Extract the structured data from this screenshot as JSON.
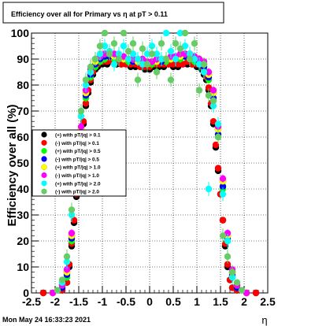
{
  "title": "Efficiency over all for Primary vs  η at pT > 0.11",
  "timestamp": "Mon May 24 16:33:23 2021",
  "chart_data": {
    "type": "scatter",
    "title": "Efficiency over all for Primary vs  η at pT > 0.11",
    "xlabel": "η",
    "ylabel": "Efficiency over all (%)",
    "xlim": [
      -2.5,
      2.5
    ],
    "ylim": [
      0,
      100
    ],
    "grid": true,
    "legend_position": "middle-left",
    "x_ticks": [
      "-2.5",
      "-2",
      "-1.5",
      "-1",
      "-0.5",
      "0",
      "0.5",
      "1",
      "1.5",
      "2",
      "2.5"
    ],
    "y_ticks": [
      "0",
      "10",
      "20",
      "30",
      "40",
      "50",
      "60",
      "70",
      "80",
      "90",
      "100"
    ],
    "series": [
      {
        "name": "(+) with pT/|q| > 0.1",
        "color": "#000000",
        "x": [
          -2.25,
          -2.05,
          -1.85,
          -1.75,
          -1.7,
          -1.65,
          -1.6,
          -1.55,
          -1.5,
          -1.45,
          -1.4,
          -1.35,
          -1.3,
          -1.25,
          -1.2,
          -1.15,
          -1.1,
          -1.0,
          -0.9,
          -0.8,
          -0.7,
          -0.6,
          -0.5,
          -0.4,
          -0.3,
          -0.2,
          -0.1,
          0.0,
          0.1,
          0.2,
          0.3,
          0.4,
          0.5,
          0.6,
          0.7,
          0.8,
          0.9,
          1.0,
          1.1,
          1.15,
          1.2,
          1.25,
          1.3,
          1.35,
          1.4,
          1.45,
          1.5,
          1.55,
          1.6,
          1.65,
          1.7,
          1.75,
          1.85,
          2.05,
          2.25
        ],
        "y": [
          0,
          0,
          1,
          4,
          10,
          18,
          27,
          37,
          47,
          57,
          65,
          72,
          77,
          81,
          84,
          86,
          87,
          88,
          88,
          89,
          88,
          88,
          88,
          87,
          87,
          87,
          86,
          86,
          87,
          87,
          87,
          88,
          87,
          87,
          88,
          88,
          88,
          87,
          86,
          84,
          82,
          78,
          72,
          65,
          56,
          47,
          38,
          28,
          18,
          10,
          5,
          2,
          1,
          0,
          0
        ]
      },
      {
        "name": "(-) with pT/|q| > 0.1",
        "color": "#ff0000",
        "x": [
          -2.25,
          -2.05,
          -1.85,
          -1.75,
          -1.7,
          -1.65,
          -1.6,
          -1.55,
          -1.5,
          -1.45,
          -1.4,
          -1.35,
          -1.3,
          -1.25,
          -1.2,
          -1.15,
          -1.1,
          -1.0,
          -0.9,
          -0.8,
          -0.7,
          -0.6,
          -0.5,
          -0.4,
          -0.3,
          -0.2,
          -0.1,
          0.0,
          0.1,
          0.2,
          0.3,
          0.4,
          0.5,
          0.6,
          0.7,
          0.8,
          0.9,
          1.0,
          1.1,
          1.15,
          1.2,
          1.25,
          1.3,
          1.35,
          1.4,
          1.45,
          1.5,
          1.55,
          1.6,
          1.65,
          1.7,
          1.75,
          1.85,
          2.05,
          2.25
        ],
        "y": [
          0,
          0,
          1,
          4,
          11,
          19,
          28,
          38,
          48,
          58,
          66,
          73,
          78,
          82,
          85,
          87,
          88,
          89,
          89,
          89,
          89,
          88,
          88,
          88,
          88,
          87,
          87,
          87,
          88,
          88,
          88,
          88,
          88,
          88,
          88,
          89,
          88,
          88,
          87,
          85,
          83,
          79,
          73,
          66,
          57,
          48,
          38,
          28,
          19,
          11,
          5,
          2,
          1,
          0,
          0
        ]
      },
      {
        "name": "(+) with pT/|q| > 0.5",
        "color": "#00ff00",
        "x": [
          -2.05,
          -1.85,
          -1.75,
          -1.65,
          -1.55,
          -1.45,
          -1.35,
          -1.25,
          -1.15,
          -1.05,
          -0.95,
          -0.85,
          -0.75,
          -0.65,
          -0.55,
          -0.45,
          -0.35,
          -0.25,
          -0.15,
          -0.05,
          0.05,
          0.15,
          0.25,
          0.35,
          0.45,
          0.55,
          0.65,
          0.75,
          0.85,
          0.95,
          1.05,
          1.15,
          1.25,
          1.35,
          1.45,
          1.55,
          1.65,
          1.75,
          1.85,
          2.05
        ],
        "y": [
          0,
          2,
          6,
          20,
          40,
          60,
          75,
          83,
          87,
          89,
          90,
          91,
          90,
          90,
          90,
          89,
          89,
          89,
          88,
          88,
          88,
          89,
          89,
          89,
          90,
          90,
          90,
          91,
          90,
          89,
          88,
          86,
          82,
          74,
          60,
          40,
          20,
          6,
          2,
          0
        ]
      },
      {
        "name": "(-) with pT/|q| > 0.5",
        "color": "#0000ff",
        "x": [
          -2.05,
          -1.85,
          -1.75,
          -1.65,
          -1.55,
          -1.45,
          -1.35,
          -1.25,
          -1.15,
          -1.05,
          -0.95,
          -0.85,
          -0.75,
          -0.65,
          -0.55,
          -0.45,
          -0.35,
          -0.25,
          -0.15,
          -0.05,
          0.05,
          0.15,
          0.25,
          0.35,
          0.45,
          0.55,
          0.65,
          0.75,
          0.85,
          0.95,
          1.05,
          1.15,
          1.25,
          1.35,
          1.45,
          1.55,
          1.65,
          1.75,
          1.85,
          2.05
        ],
        "y": [
          0,
          2,
          7,
          21,
          41,
          61,
          76,
          84,
          88,
          90,
          91,
          91,
          91,
          90,
          90,
          90,
          89,
          89,
          89,
          89,
          89,
          89,
          89,
          90,
          90,
          90,
          91,
          91,
          91,
          90,
          89,
          87,
          83,
          75,
          61,
          41,
          21,
          7,
          2,
          0
        ]
      },
      {
        "name": "(+) with pT/|q| > 1.0",
        "color": "#ffff00",
        "x": [
          -2.05,
          -1.85,
          -1.75,
          -1.65,
          -1.55,
          -1.45,
          -1.35,
          -1.25,
          -1.15,
          -1.05,
          -0.95,
          -0.85,
          -0.75,
          -0.65,
          -0.55,
          -0.45,
          -0.35,
          -0.25,
          -0.15,
          -0.05,
          0.05,
          0.15,
          0.25,
          0.35,
          0.45,
          0.55,
          0.65,
          0.75,
          0.85,
          0.95,
          1.05,
          1.15,
          1.25,
          1.35,
          1.45,
          1.55,
          1.65,
          1.75,
          1.85,
          2.05
        ],
        "y": [
          0,
          3,
          8,
          22,
          43,
          63,
          77,
          85,
          89,
          91,
          92,
          92,
          91,
          91,
          90,
          90,
          90,
          89,
          89,
          89,
          89,
          89,
          90,
          90,
          90,
          91,
          91,
          92,
          92,
          91,
          90,
          88,
          84,
          77,
          63,
          43,
          22,
          8,
          3,
          0
        ]
      },
      {
        "name": "(-) with pT/|q| > 1.0",
        "color": "#ff00ff",
        "x": [
          -2.05,
          -1.85,
          -1.75,
          -1.65,
          -1.55,
          -1.45,
          -1.35,
          -1.25,
          -1.15,
          -1.05,
          -0.95,
          -0.85,
          -0.75,
          -0.65,
          -0.55,
          -0.45,
          -0.35,
          -0.25,
          -0.15,
          -0.05,
          0.05,
          0.15,
          0.25,
          0.35,
          0.45,
          0.55,
          0.65,
          0.75,
          0.85,
          0.95,
          1.05,
          1.15,
          1.25,
          1.35,
          1.45,
          1.55,
          1.65,
          1.75,
          1.85,
          2.05
        ],
        "y": [
          0,
          3,
          9,
          23,
          44,
          64,
          78,
          86,
          90,
          91,
          92,
          92,
          92,
          91,
          91,
          90,
          90,
          90,
          90,
          89,
          89,
          90,
          90,
          90,
          91,
          91,
          92,
          92,
          92,
          91,
          90,
          89,
          85,
          78,
          64,
          44,
          23,
          9,
          3,
          0
        ]
      },
      {
        "name": "(+) with pT/|q| > 2.0",
        "color": "#00ffff",
        "x": [
          -1.95,
          -1.85,
          -1.75,
          -1.65,
          -1.55,
          -1.45,
          -1.35,
          -1.25,
          -1.15,
          -1.05,
          -0.95,
          -0.85,
          -0.75,
          -0.65,
          -0.55,
          -0.45,
          -0.35,
          -0.25,
          -0.15,
          -0.05,
          0.05,
          0.15,
          0.25,
          0.35,
          0.45,
          0.55,
          0.65,
          0.75,
          0.85,
          0.95,
          1.05,
          1.15,
          1.25,
          1.35,
          1.45,
          1.55,
          1.65,
          1.75,
          1.85,
          1.95
        ],
        "y": [
          1,
          4,
          12,
          30,
          50,
          68,
          80,
          85,
          90,
          92,
          95,
          93,
          88,
          92,
          95,
          90,
          92,
          90,
          88,
          92,
          95,
          92,
          90,
          100,
          93,
          90,
          100,
          95,
          92,
          90,
          88,
          85,
          40,
          72,
          65,
          38,
          20,
          6,
          4,
          1
        ]
      },
      {
        "name": "(-) with pT/|q| > 2.0",
        "color": "#66cc66",
        "x": [
          -1.95,
          -1.85,
          -1.75,
          -1.65,
          -1.55,
          -1.45,
          -1.35,
          -1.25,
          -1.15,
          -1.05,
          -0.95,
          -0.85,
          -0.75,
          -0.65,
          -0.55,
          -0.45,
          -0.35,
          -0.25,
          -0.15,
          -0.05,
          0.05,
          0.15,
          0.25,
          0.35,
          0.45,
          0.55,
          0.65,
          0.75,
          0.85,
          0.95,
          1.05,
          1.15,
          1.25,
          1.35,
          1.45,
          1.55,
          1.65,
          1.75,
          1.85,
          1.95
        ],
        "y": [
          1,
          5,
          14,
          32,
          52,
          70,
          82,
          87,
          90,
          95,
          100,
          92,
          96,
          90,
          100,
          93,
          96,
          82,
          94,
          88,
          92,
          85,
          96,
          90,
          82,
          96,
          94,
          100,
          90,
          96,
          78,
          88,
          76,
          74,
          60,
          22,
          14,
          8,
          4,
          1
        ]
      }
    ]
  }
}
